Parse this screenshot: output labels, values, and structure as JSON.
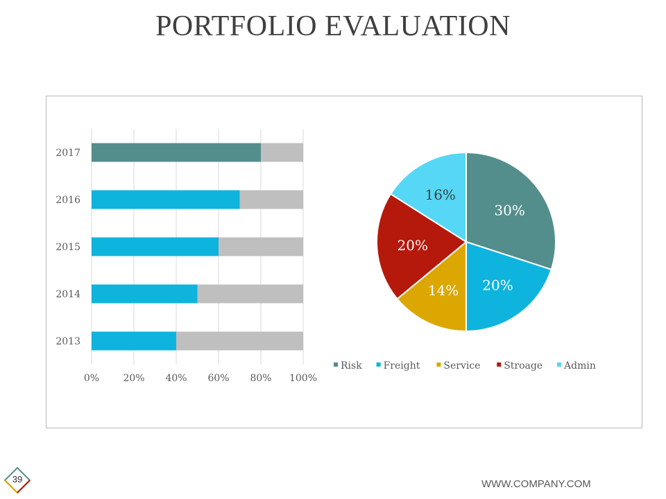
{
  "slide": {
    "title": "PORTFOLIO EVALUATION",
    "page_number": "39",
    "footer": "WWW.COMPANY.COM"
  },
  "colors": {
    "risk": "#548e8c",
    "freight": "#0eb4dd",
    "service": "#dca701",
    "stroage": "#b5190b",
    "admin": "#55d7f5",
    "remainder": "#bfbfbf"
  },
  "chart_data": [
    {
      "type": "bar",
      "orientation": "horizontal",
      "stacked": true,
      "categories": [
        "2017",
        "2016",
        "2015",
        "2014",
        "2013"
      ],
      "series": [
        {
          "values": [
            80,
            70,
            60,
            50,
            40
          ],
          "colors": [
            "#548e8c",
            "#0eb4dd",
            "#0eb4dd",
            "#0eb4dd",
            "#0eb4dd"
          ]
        },
        {
          "values": [
            20,
            30,
            40,
            50,
            60
          ],
          "color": "#bfbfbf"
        }
      ],
      "x_ticks": [
        "0%",
        "20%",
        "40%",
        "60%",
        "80%",
        "100%"
      ],
      "xlim": [
        0,
        100
      ],
      "grid": true
    },
    {
      "type": "pie",
      "slices": [
        {
          "name": "Risk",
          "value": 30,
          "label": "30%",
          "color": "#548e8c"
        },
        {
          "name": "Freight",
          "value": 20,
          "label": "20%",
          "color": "#0eb4dd"
        },
        {
          "name": "Service",
          "value": 14,
          "label": "14%",
          "color": "#dca701"
        },
        {
          "name": "Stroage",
          "value": 20,
          "label": "20%",
          "color": "#b5190b"
        },
        {
          "name": "Admin",
          "value": 16,
          "label": "16%",
          "color": "#55d7f5"
        }
      ],
      "legend_position": "bottom"
    }
  ]
}
